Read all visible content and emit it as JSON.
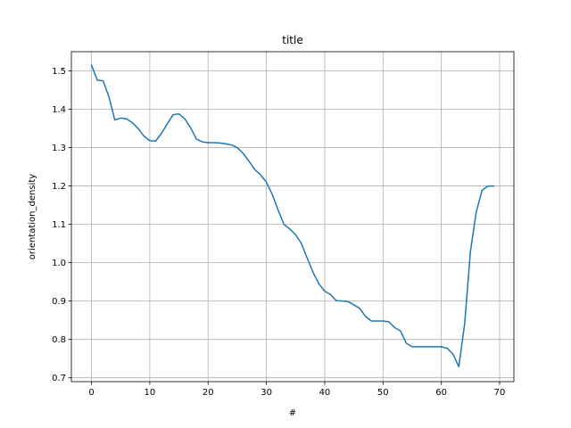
{
  "chart_data": {
    "type": "line",
    "title": "title",
    "xlabel": "#",
    "ylabel": "orientation_density",
    "xlim": [
      -3.45,
      72.45
    ],
    "ylim": [
      0.69,
      1.55
    ],
    "xticks": [
      0,
      10,
      20,
      30,
      40,
      50,
      60,
      70
    ],
    "yticks": [
      0.7,
      0.8,
      0.9,
      1.0,
      1.1,
      1.2,
      1.3,
      1.4,
      1.5
    ],
    "ytick_labels": [
      "0.7",
      "0.8",
      "0.9",
      "1.0",
      "1.1",
      "1.2",
      "1.3",
      "1.4",
      "1.5"
    ],
    "grid": true,
    "series": [
      {
        "color": "#1f77b4",
        "x": [
          0,
          1,
          2,
          3,
          4,
          5,
          6,
          7,
          8,
          9,
          10,
          11,
          12,
          13,
          14,
          15,
          16,
          17,
          18,
          19,
          20,
          21,
          22,
          23,
          24,
          25,
          26,
          27,
          28,
          29,
          30,
          31,
          32,
          33,
          34,
          35,
          36,
          37,
          38,
          39,
          40,
          41,
          42,
          43,
          44,
          45,
          46,
          47,
          48,
          49,
          50,
          51,
          52,
          53,
          54,
          55,
          56,
          57,
          58,
          59,
          60,
          61,
          62,
          63,
          64,
          65,
          66,
          67,
          68,
          69
        ],
        "values": [
          1.515,
          1.476,
          1.474,
          1.432,
          1.372,
          1.377,
          1.375,
          1.365,
          1.35,
          1.33,
          1.318,
          1.317,
          1.337,
          1.362,
          1.386,
          1.388,
          1.375,
          1.352,
          1.322,
          1.315,
          1.313,
          1.313,
          1.312,
          1.31,
          1.307,
          1.3,
          1.285,
          1.265,
          1.243,
          1.229,
          1.21,
          1.178,
          1.138,
          1.1,
          1.088,
          1.073,
          1.05,
          1.012,
          0.975,
          0.945,
          0.926,
          0.917,
          0.901,
          0.9,
          0.899,
          0.89,
          0.881,
          0.86,
          0.848,
          0.848,
          0.848,
          0.846,
          0.831,
          0.822,
          0.79,
          0.781,
          0.781,
          0.781,
          0.781,
          0.781,
          0.781,
          0.777,
          0.762,
          0.729,
          0.84,
          1.03,
          1.133,
          1.189,
          1.2,
          1.2
        ]
      }
    ]
  }
}
